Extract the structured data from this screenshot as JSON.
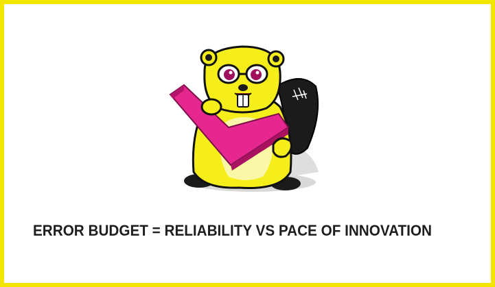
{
  "caption": "ERROR BUDGET = RELIABILITY VS PACE OF INNOVATION",
  "illustration": {
    "name": "beaver-mascot-with-checkmark",
    "colors": {
      "border": "#f2e600",
      "fur": "#f5ee1a",
      "outline": "#111111",
      "checkmark": "#e6278f",
      "tail": "#1b1b1b"
    }
  }
}
